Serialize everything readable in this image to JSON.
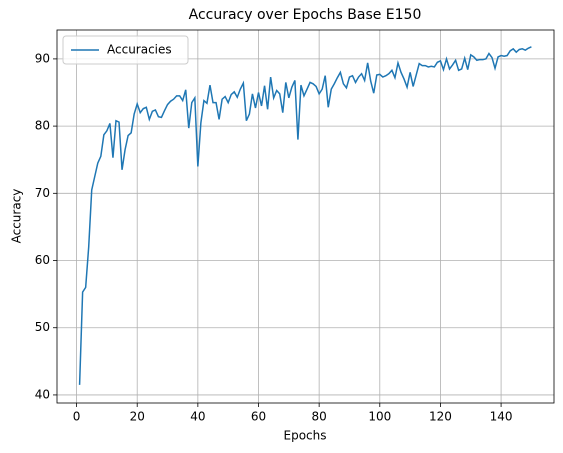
{
  "chart_data": {
    "type": "line",
    "title": "Accuracy over Epochs Base E150",
    "x_label": "Epochs",
    "y_label": "Accuracy",
    "x": [
      1,
      2,
      3,
      4,
      5,
      6,
      7,
      8,
      9,
      10,
      11,
      12,
      13,
      14,
      15,
      16,
      17,
      18,
      19,
      20,
      21,
      22,
      23,
      24,
      25,
      26,
      27,
      28,
      29,
      30,
      31,
      32,
      33,
      34,
      35,
      36,
      37,
      38,
      39,
      40,
      41,
      42,
      43,
      44,
      45,
      46,
      47,
      48,
      49,
      50,
      51,
      52,
      53,
      54,
      55,
      56,
      57,
      58,
      59,
      60,
      61,
      62,
      63,
      64,
      65,
      66,
      67,
      68,
      69,
      70,
      71,
      72,
      73,
      74,
      75,
      76,
      77,
      78,
      79,
      80,
      81,
      82,
      83,
      84,
      85,
      86,
      87,
      88,
      89,
      90,
      91,
      92,
      93,
      94,
      95,
      96,
      97,
      98,
      99,
      100,
      101,
      102,
      103,
      104,
      105,
      106,
      107,
      108,
      109,
      110,
      111,
      112,
      113,
      114,
      115,
      116,
      117,
      118,
      119,
      120,
      121,
      122,
      123,
      124,
      125,
      126,
      127,
      128,
      129,
      130,
      131,
      132,
      133,
      134,
      135,
      136,
      137,
      138,
      139,
      140,
      141,
      142,
      143,
      144,
      145,
      146,
      147,
      148,
      149,
      150
    ],
    "series": [
      {
        "name": "Accuracies",
        "color": "#1f77b4",
        "values": [
          41.5,
          55.3,
          56,
          62,
          70.5,
          72.5,
          74.5,
          75.5,
          78.7,
          79.3,
          80.4,
          75.3,
          80.8,
          80.6,
          73.5,
          76.5,
          78.6,
          79,
          81.8,
          83.3,
          82,
          82.6,
          82.8,
          81,
          82.2,
          82.4,
          81.4,
          81.3,
          82.3,
          83.2,
          83.7,
          84,
          84.5,
          84.5,
          83.8,
          85.4,
          79.7,
          83.5,
          84.2,
          74,
          80.5,
          83.8,
          83.4,
          86.1,
          83.5,
          83.5,
          81,
          84,
          84.4,
          83.5,
          84.7,
          85.1,
          84.3,
          85.5,
          86.4,
          80.8,
          81.8,
          84.8,
          82.7,
          85,
          83,
          86,
          82.5,
          87.3,
          84.2,
          85.3,
          84.8,
          82,
          86.5,
          84.2,
          85.8,
          86.8,
          78,
          86.1,
          84.5,
          85.5,
          86.5,
          86.3,
          85.9,
          84.8,
          85.5,
          87.5,
          82.8,
          85.5,
          86.3,
          87.2,
          88,
          86.3,
          85.7,
          87.3,
          87.5,
          86.5,
          87.3,
          87.8,
          86.8,
          89.4,
          86.7,
          84.9,
          87.6,
          87.7,
          87.3,
          87.5,
          87.8,
          88.3,
          87.2,
          89.4,
          88,
          87,
          85.8,
          88,
          85.9,
          87.6,
          89.3,
          89,
          89,
          88.8,
          88.9,
          88.8,
          89.5,
          89.7,
          88.4,
          90,
          88.5,
          89.1,
          89.8,
          88.3,
          88.5,
          90.1,
          88.4,
          90.6,
          90.3,
          89.8,
          89.9,
          89.9,
          90,
          90.8,
          90.2,
          88.6,
          90.3,
          90.5,
          90.4,
          90.5,
          91.2,
          91.5,
          91,
          91.4,
          91.5,
          91.3,
          91.6,
          91.8
        ]
      }
    ],
    "xlim": [
      -6.45,
      157.45
    ],
    "ylim": [
      38.8,
      94.3
    ],
    "xticks": [
      0,
      20,
      40,
      60,
      80,
      100,
      120,
      140
    ],
    "yticks": [
      40,
      50,
      60,
      70,
      80,
      90
    ],
    "grid": true,
    "legend": "upper-left"
  }
}
